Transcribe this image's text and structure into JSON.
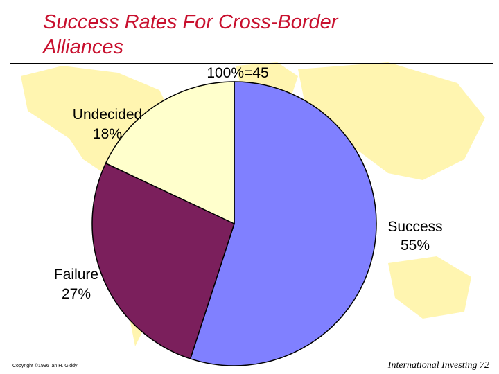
{
  "slide": {
    "title_line1": "Success Rates For Cross-Border",
    "title_line2": "Alliances",
    "footer_copyright": "Copyright ©1996 Ian H. Giddy",
    "footer_page": "International Investing 72"
  },
  "chart_data": {
    "type": "pie",
    "title": "100%=45",
    "slices": [
      {
        "label": "Success",
        "value": 55,
        "value_label": "55%",
        "color": "#8080ff"
      },
      {
        "label": "Failure",
        "value": 27,
        "value_label": "27%",
        "color": "#7b1f5c"
      },
      {
        "label": "Undecided",
        "value": 18,
        "value_label": "18%",
        "color": "#ffffcc"
      }
    ]
  },
  "colors": {
    "title": "#c8102e",
    "map": "#fff5b0"
  }
}
